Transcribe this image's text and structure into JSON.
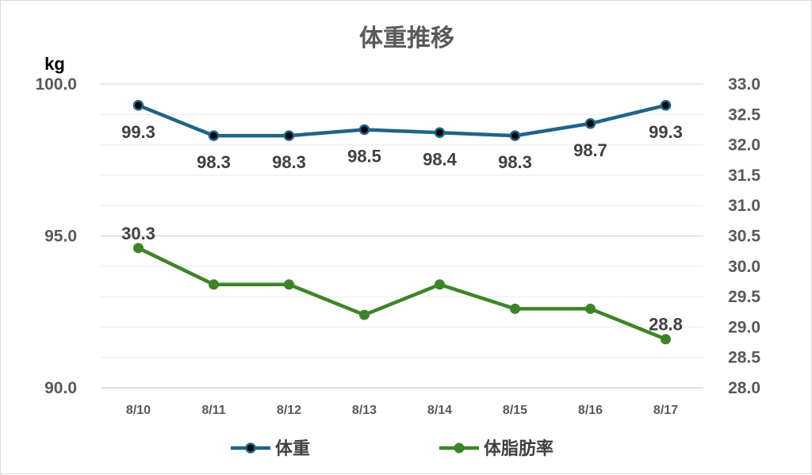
{
  "chart_data": {
    "type": "line",
    "title": "体重推移",
    "y_left_unit": "kg",
    "categories": [
      "8/10",
      "8/11",
      "8/12",
      "8/13",
      "8/14",
      "8/15",
      "8/16",
      "8/17"
    ],
    "y_left": {
      "min": 90,
      "max": 100,
      "ticks": [
        "100.0",
        "95.0",
        "90.0"
      ],
      "tick_values": [
        100,
        95,
        90
      ],
      "minor_step": 1
    },
    "y_right": {
      "min": 28,
      "max": 33,
      "ticks": [
        "33.0",
        "32.5",
        "32.0",
        "31.5",
        "31.0",
        "30.5",
        "30.0",
        "29.5",
        "29.0",
        "28.5",
        "28.0"
      ],
      "tick_values": [
        33,
        32.5,
        32,
        31.5,
        31,
        30.5,
        30,
        29.5,
        29,
        28.5,
        28
      ]
    },
    "grid": true,
    "legend_position": "bottom",
    "series": [
      {
        "name": "体重",
        "axis": "left",
        "color": "#1f6487",
        "values": [
          99.3,
          98.3,
          98.3,
          98.5,
          98.4,
          98.3,
          98.7,
          99.3
        ],
        "data_labels": [
          "99.3",
          "98.3",
          "98.3",
          "98.5",
          "98.4",
          "98.3",
          "98.7",
          "99.3"
        ]
      },
      {
        "name": "体脂肪率",
        "axis": "right",
        "color": "#3d8427",
        "values": [
          30.3,
          29.7,
          29.7,
          29.2,
          29.7,
          29.3,
          29.3,
          28.8
        ],
        "data_labels": [
          "30.3",
          "",
          "",
          "",
          "",
          "",
          "",
          "28.8"
        ]
      }
    ]
  }
}
